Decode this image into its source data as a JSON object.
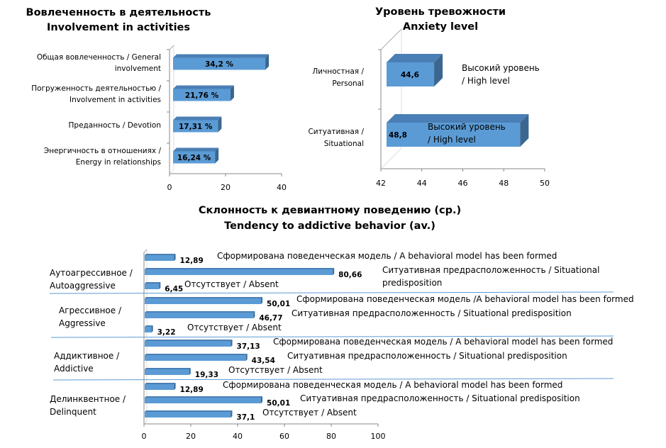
{
  "chart_data": [
    {
      "type": "bar",
      "orientation": "horizontal",
      "title": [
        "Вовлеченность в деятельность",
        "Involvement in activities"
      ],
      "categories": [
        [
          "Общая вовлеченность / General",
          "involvement"
        ],
        [
          "Погруженность деятельностью /",
          "Involvement in activities"
        ],
        [
          "Преданность / Devotion"
        ],
        [
          "Энергичность в отношениях /",
          "Energy in relationships"
        ]
      ],
      "values": [
        34.2,
        21.76,
        17.31,
        16.24
      ],
      "data_labels": [
        "34,2 %",
        "21,76 %",
        "17,31 %",
        "16,24 %"
      ],
      "xlim": [
        0,
        40
      ],
      "xticks": [
        "0",
        "20",
        "40"
      ],
      "bar_color": "#5B9BD5",
      "style": "3d"
    },
    {
      "type": "bar",
      "orientation": "horizontal",
      "title": [
        "Уровень тревожности",
        "Anxiety level"
      ],
      "categories": [
        [
          "Личностная /",
          "Personal"
        ],
        [
          "Ситуативная /",
          "Situational"
        ]
      ],
      "values": [
        44.6,
        48.8
      ],
      "data_labels": [
        "44,6",
        "48,8"
      ],
      "annotations": [
        [
          "Высокий уровень",
          "/ High level"
        ],
        [
          "Высокий уровень",
          "/  High level"
        ]
      ],
      "xlim": [
        42,
        50
      ],
      "xticks": [
        "42",
        "44",
        "46",
        "48",
        "50"
      ],
      "bar_color": "#5B9BD5",
      "style": "3d"
    },
    {
      "type": "bar",
      "orientation": "horizontal",
      "title": [
        "Склонность к девиантному  поведению (ср.)",
        "Tendency to addictive behavior (av.)"
      ],
      "groups": [
        {
          "label": [
            "Аутоагрессивное /",
            "Autoaggressive"
          ],
          "bars": [
            {
              "value": 12.89,
              "label": "12,89",
              "note": [
                "Сформирована поведенческая модель / A behavioral model has been formed"
              ]
            },
            {
              "value": 80.66,
              "label": "80,66",
              "note": [
                "Ситуативная предрасположенность / Situational",
                "predisposition"
              ]
            },
            {
              "value": 6.45,
              "label": "6,45",
              "note": [
                "Отсутствует / Absent"
              ]
            }
          ]
        },
        {
          "label": [
            "Агрессивное /",
            "Aggressive"
          ],
          "bars": [
            {
              "value": 50.01,
              "label": "50,01",
              "note": [
                "Сформирована поведенческая модель /A behavioral model has been formed"
              ]
            },
            {
              "value": 46.77,
              "label": "46,77",
              "note": [
                "Ситуативная предрасположенность / Situational predisposition"
              ]
            },
            {
              "value": 3.22,
              "label": "3,22",
              "note": [
                "Отсутствует / Absent"
              ]
            }
          ]
        },
        {
          "label": [
            "Аддиктивное /",
            "Addictive"
          ],
          "bars": [
            {
              "value": 37.13,
              "label": "37,13",
              "note": [
                "Сформирована поведенческая модель / A behavioral model has been formed"
              ]
            },
            {
              "value": 43.54,
              "label": "43,54",
              "note": [
                "Ситуативная предрасположенность / Situational predisposition"
              ]
            },
            {
              "value": 19.33,
              "label": "19,33",
              "note": [
                "Отсутствует / Absent"
              ]
            }
          ]
        },
        {
          "label": [
            "Делинквентное /",
            "Delinquent"
          ],
          "bars": [
            {
              "value": 12.89,
              "label": "12,89",
              "note": [
                "Сформирована поведенческая модель / A behavioral model has been formed"
              ]
            },
            {
              "value": 50.01,
              "label": "50,01",
              "note": [
                "Ситуативная предрасположенность / Situational predisposition"
              ]
            },
            {
              "value": 37.1,
              "label": "37,1",
              "note": [
                "Отсутствует / Absent"
              ]
            }
          ]
        }
      ],
      "xlim": [
        0,
        100
      ],
      "xticks": [
        "0",
        "20",
        "40",
        "60",
        "80",
        "100"
      ],
      "bar_color": "#5B9BD5",
      "separator_color": "#5B9BD5",
      "style": "3d"
    }
  ]
}
